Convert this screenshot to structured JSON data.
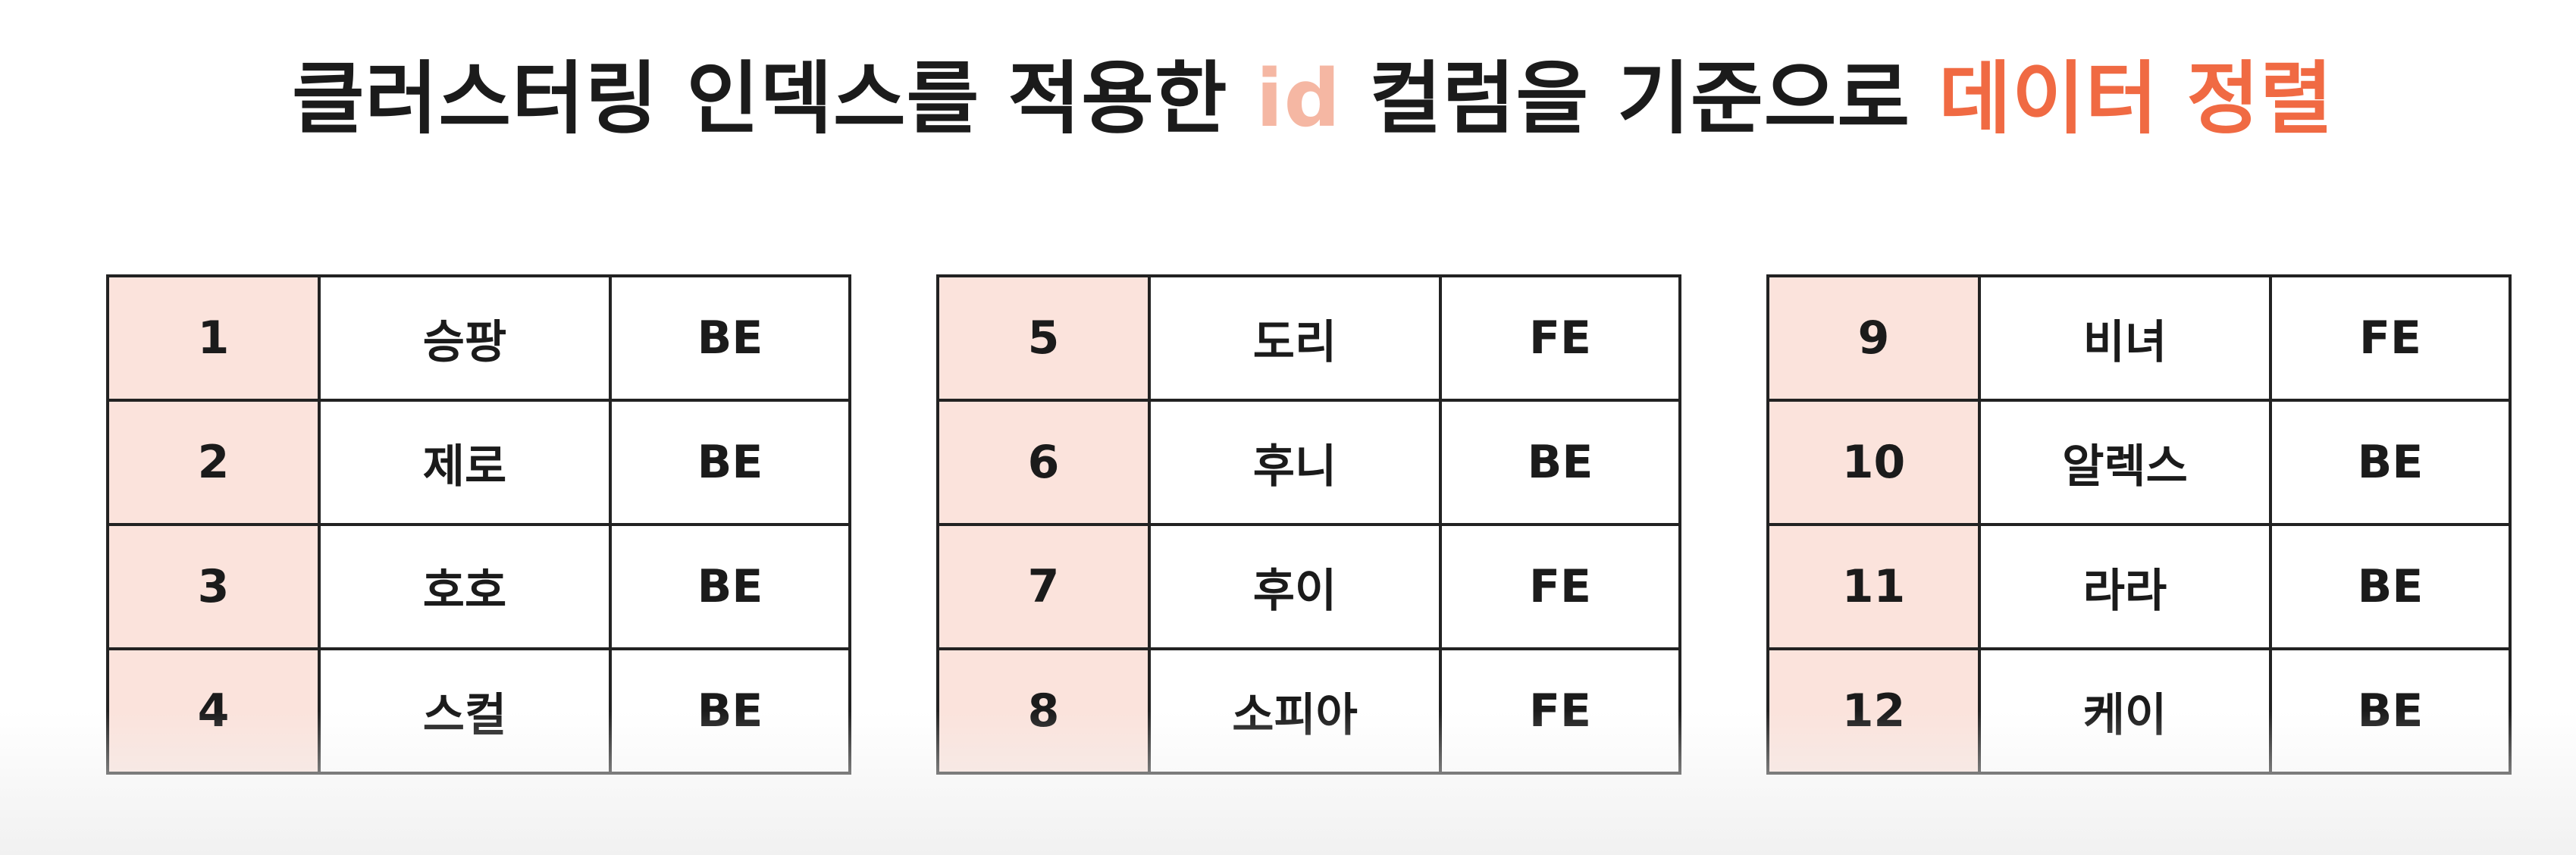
{
  "title": {
    "part1": "클러스터링 인덱스를 적용한 ",
    "id_word": "id",
    "part2": " 컬럼을 기준으로 ",
    "sort_word": "데이터 정렬"
  },
  "colors": {
    "id_highlight": "#f5b7a3",
    "sort_highlight": "#f06a43",
    "id_cell_background": "#fbe3dc",
    "border": "#222222"
  },
  "tables": [
    {
      "rows": [
        {
          "id": "1",
          "name": "승팡",
          "team": "BE"
        },
        {
          "id": "2",
          "name": "제로",
          "team": "BE"
        },
        {
          "id": "3",
          "name": "호호",
          "team": "BE"
        },
        {
          "id": "4",
          "name": "스컬",
          "team": "BE"
        }
      ]
    },
    {
      "rows": [
        {
          "id": "5",
          "name": "도리",
          "team": "FE"
        },
        {
          "id": "6",
          "name": "후니",
          "team": "BE"
        },
        {
          "id": "7",
          "name": "후이",
          "team": "FE"
        },
        {
          "id": "8",
          "name": "소피아",
          "team": "FE"
        }
      ]
    },
    {
      "rows": [
        {
          "id": "9",
          "name": "비녀",
          "team": "FE"
        },
        {
          "id": "10",
          "name": "알렉스",
          "team": "BE"
        },
        {
          "id": "11",
          "name": "라라",
          "team": "BE"
        },
        {
          "id": "12",
          "name": "케이",
          "team": "BE"
        }
      ]
    }
  ]
}
